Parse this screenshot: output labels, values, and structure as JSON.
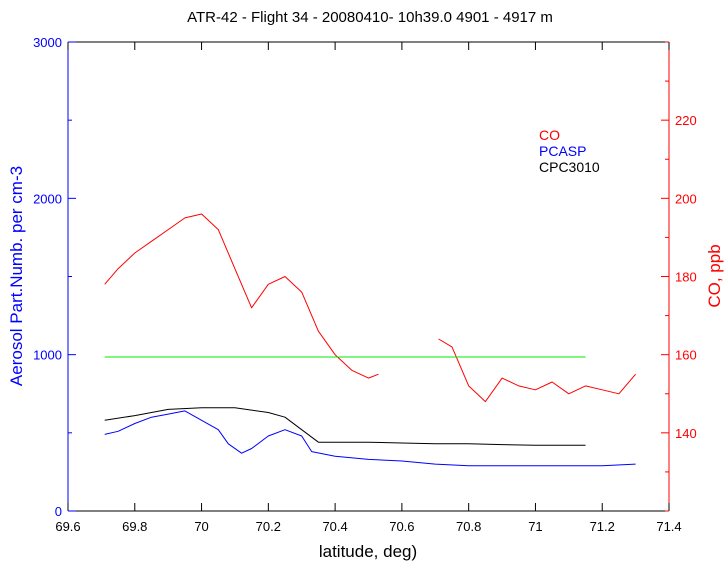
{
  "chart_data": {
    "type": "line",
    "title": "ATR-42 - Flight 34 - 20080410- 10h39.0  4901 - 4917 m",
    "xlabel": "latitude, deg)",
    "ylabel_left": "Aerosol Part.Numb. per cm-3",
    "ylabel_right": "CO, ppb",
    "xlim": [
      69.6,
      71.4
    ],
    "ylim_left": [
      0,
      3000
    ],
    "ylim_right": [
      120,
      240
    ],
    "x_ticks": [
      69.6,
      69.8,
      70,
      70.2,
      70.4,
      70.6,
      70.8,
      71,
      71.2,
      71.4
    ],
    "x_tick_labels": [
      "69.6",
      "69.8",
      "70",
      "70.2",
      "70.4",
      "70.6",
      "70.8",
      "71",
      "71.2",
      "71.4"
    ],
    "y_left_ticks": [
      0,
      1000,
      2000,
      3000
    ],
    "y_left_tick_labels": [
      "0",
      "1000",
      "2000",
      "3000"
    ],
    "y_right_ticks": [
      140,
      160,
      180,
      200,
      220
    ],
    "y_right_tick_labels": [
      "140",
      "160",
      "180",
      "200",
      "220"
    ],
    "legend": {
      "position": "top-right",
      "entries": [
        {
          "label": "CO",
          "color": "#ff0000"
        },
        {
          "label": "PCASP",
          "color": "#0000ff"
        },
        {
          "label": "CPC3010",
          "color": "#000000"
        }
      ]
    },
    "series": [
      {
        "name": "CO",
        "axis": "right",
        "color": "#ff0000",
        "segments": [
          {
            "x": [
              69.71,
              69.75,
              69.8,
              69.85,
              69.9,
              69.95,
              70.0,
              70.05,
              70.1,
              70.15,
              70.2,
              70.25,
              70.3,
              70.35,
              70.4,
              70.45,
              70.5,
              70.53
            ],
            "y": [
              178,
              182,
              186,
              189,
              192,
              195,
              196,
              192,
              182,
              172,
              178,
              180,
              176,
              166,
              160,
              156,
              154,
              155
            ]
          },
          {
            "x": [
              70.71,
              70.75,
              70.8,
              70.85,
              70.9,
              70.95,
              71.0,
              71.05,
              71.1,
              71.15,
              71.2,
              71.25,
              71.3
            ],
            "y": [
              164,
              162,
              152,
              148,
              154,
              152,
              151,
              153,
              150,
              152,
              151,
              150,
              155
            ]
          }
        ]
      },
      {
        "name": "PCASP",
        "axis": "left",
        "color": "#0000ff",
        "segments": [
          {
            "x": [
              69.71,
              69.75,
              69.8,
              69.85,
              69.9,
              69.95,
              70.0,
              70.05,
              70.08,
              70.12,
              70.15,
              70.2,
              70.25,
              70.3,
              70.33,
              70.4,
              70.5,
              70.6,
              70.7,
              70.8,
              70.9,
              71.0,
              71.1,
              71.2,
              71.3
            ],
            "y": [
              490,
              510,
              560,
              600,
              620,
              640,
              580,
              520,
              430,
              370,
              400,
              480,
              520,
              480,
              380,
              350,
              330,
              320,
              300,
              290,
              290,
              290,
              290,
              290,
              300
            ]
          }
        ]
      },
      {
        "name": "CPC3010",
        "axis": "left",
        "color": "#000000",
        "segments": [
          {
            "x": [
              69.71,
              69.8,
              69.9,
              70.0,
              70.1,
              70.2,
              70.25,
              70.3,
              70.35,
              70.4,
              70.5,
              70.6,
              70.7,
              70.8,
              70.9,
              71.0,
              71.1,
              71.15
            ],
            "y": [
              580,
              610,
              650,
              660,
              660,
              630,
              600,
              520,
              440,
              440,
              440,
              435,
              430,
              430,
              425,
              420,
              420,
              420
            ]
          }
        ]
      },
      {
        "name": "",
        "axis": "left",
        "color": "#00ee00",
        "segments": [
          {
            "x": [
              69.71,
              71.15
            ],
            "y": [
              985,
              985
            ]
          }
        ]
      }
    ]
  }
}
